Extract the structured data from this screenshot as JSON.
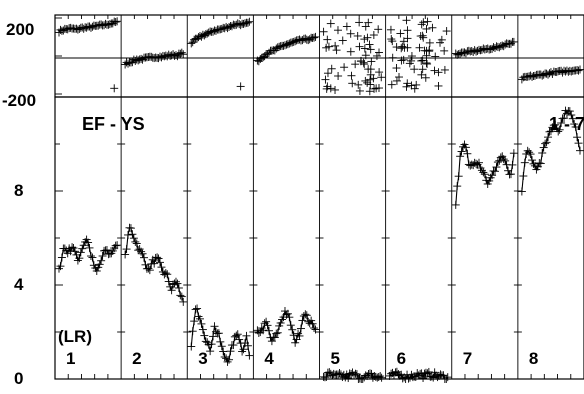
{
  "chart_data": {
    "type": "line",
    "title": "",
    "top_axis": {
      "ylim": [
        -200,
        200
      ],
      "ticks": [
        "200",
        "-200"
      ],
      "reference_line": 0
    },
    "bottom_axis": {
      "ylim": [
        0,
        12
      ],
      "ticks": [
        "0",
        "4",
        "8"
      ]
    },
    "label_left": "EF - YS",
    "label_right": "1 - 7",
    "label_units": "(LR)",
    "panel_labels": [
      "1",
      "2",
      "3",
      "4",
      "5",
      "6",
      "7",
      "8"
    ],
    "grid": false,
    "panels": [
      {
        "label": "1",
        "phase": [
          [
            0,
            130
          ],
          [
            0.1,
            140
          ],
          [
            0.2,
            145
          ],
          [
            0.3,
            140
          ],
          [
            0.4,
            148
          ],
          [
            0.5,
            150
          ],
          [
            0.6,
            155
          ],
          [
            0.7,
            160
          ],
          [
            0.8,
            165
          ],
          [
            0.9,
            172
          ],
          [
            1,
            180
          ]
        ],
        "phase_outlier": [
          [
            0.95,
            -170
          ]
        ],
        "amplitude": [
          [
            0,
            4.6
          ],
          [
            0.08,
            5.6
          ],
          [
            0.16,
            5.4
          ],
          [
            0.24,
            5.7
          ],
          [
            0.32,
            5.0
          ],
          [
            0.4,
            5.6
          ],
          [
            0.48,
            6.0
          ],
          [
            0.56,
            5.2
          ],
          [
            0.64,
            4.5
          ],
          [
            0.72,
            5.0
          ],
          [
            0.8,
            5.5
          ],
          [
            0.88,
            5.3
          ],
          [
            0.95,
            5.6
          ],
          [
            1,
            5.6
          ]
        ]
      },
      {
        "label": "2",
        "phase": [
          [
            0,
            -40
          ],
          [
            0.1,
            -30
          ],
          [
            0.2,
            -20
          ],
          [
            0.3,
            -15
          ],
          [
            0.4,
            -10
          ],
          [
            0.5,
            -5
          ],
          [
            0.6,
            -5
          ],
          [
            0.7,
            0
          ],
          [
            0.8,
            5
          ],
          [
            0.9,
            5
          ],
          [
            1,
            15
          ]
        ],
        "amplitude": [
          [
            0,
            5.2
          ],
          [
            0.08,
            6.5
          ],
          [
            0.16,
            6.0
          ],
          [
            0.24,
            5.5
          ],
          [
            0.32,
            5.2
          ],
          [
            0.4,
            4.6
          ],
          [
            0.48,
            5.0
          ],
          [
            0.56,
            5.1
          ],
          [
            0.64,
            4.6
          ],
          [
            0.72,
            4.4
          ],
          [
            0.8,
            3.8
          ],
          [
            0.88,
            4.2
          ],
          [
            0.95,
            3.6
          ],
          [
            1,
            3.3
          ]
        ]
      },
      {
        "label": "3",
        "phase": [
          [
            0,
            70
          ],
          [
            0.1,
            90
          ],
          [
            0.2,
            110
          ],
          [
            0.3,
            120
          ],
          [
            0.4,
            135
          ],
          [
            0.5,
            140
          ],
          [
            0.6,
            150
          ],
          [
            0.7,
            160
          ],
          [
            0.8,
            170
          ],
          [
            0.9,
            165
          ],
          [
            1,
            175
          ]
        ],
        "phase_outlier": [
          [
            0.85,
            -160
          ]
        ],
        "amplitude": [
          [
            0,
            1.5
          ],
          [
            0.08,
            3.0
          ],
          [
            0.16,
            2.6
          ],
          [
            0.24,
            1.8
          ],
          [
            0.32,
            1.2
          ],
          [
            0.4,
            2.2
          ],
          [
            0.48,
            1.8
          ],
          [
            0.56,
            1.0
          ],
          [
            0.64,
            0.8
          ],
          [
            0.72,
            1.5
          ],
          [
            0.8,
            2.0
          ],
          [
            0.88,
            1.2
          ],
          [
            0.95,
            1.8
          ],
          [
            1,
            1.0
          ]
        ]
      },
      {
        "label": "4",
        "phase": [
          [
            0,
            -30
          ],
          [
            0.1,
            0
          ],
          [
            0.2,
            20
          ],
          [
            0.3,
            30
          ],
          [
            0.4,
            50
          ],
          [
            0.5,
            60
          ],
          [
            0.6,
            70
          ],
          [
            0.7,
            80
          ],
          [
            0.8,
            85
          ],
          [
            0.9,
            90
          ],
          [
            1,
            95
          ]
        ],
        "amplitude": [
          [
            0,
            2.0
          ],
          [
            0.08,
            2.1
          ],
          [
            0.16,
            2.4
          ],
          [
            0.24,
            1.6
          ],
          [
            0.32,
            1.8
          ],
          [
            0.4,
            2.4
          ],
          [
            0.48,
            2.9
          ],
          [
            0.56,
            2.5
          ],
          [
            0.64,
            1.6
          ],
          [
            0.72,
            1.9
          ],
          [
            0.8,
            2.8
          ],
          [
            0.88,
            2.5
          ],
          [
            0.95,
            2.3
          ],
          [
            1,
            2.2
          ]
        ]
      },
      {
        "label": "5",
        "phase_scattered": true,
        "amplitude": [
          [
            0,
            0.1
          ],
          [
            0.1,
            0.2
          ],
          [
            0.2,
            0.1
          ],
          [
            0.3,
            0.15
          ],
          [
            0.4,
            0.1
          ],
          [
            0.5,
            0.2
          ],
          [
            0.6,
            0.1
          ],
          [
            0.7,
            0.05
          ],
          [
            0.8,
            0.15
          ],
          [
            0.9,
            0.1
          ],
          [
            1,
            0.05
          ]
        ]
      },
      {
        "label": "6",
        "phase_scattered": true,
        "amplitude": [
          [
            0,
            0.1
          ],
          [
            0.1,
            0.2
          ],
          [
            0.2,
            0.15
          ],
          [
            0.3,
            0.1
          ],
          [
            0.4,
            0.15
          ],
          [
            0.5,
            0.2
          ],
          [
            0.6,
            0.15
          ],
          [
            0.7,
            0.2
          ],
          [
            0.8,
            0.15
          ],
          [
            0.9,
            0.1
          ],
          [
            1,
            0.05
          ]
        ]
      },
      {
        "label": "7",
        "phase": [
          [
            0,
            10
          ],
          [
            0.1,
            15
          ],
          [
            0.2,
            20
          ],
          [
            0.3,
            25
          ],
          [
            0.4,
            30
          ],
          [
            0.5,
            35
          ],
          [
            0.6,
            40
          ],
          [
            0.7,
            45
          ],
          [
            0.8,
            55
          ],
          [
            0.9,
            65
          ],
          [
            1,
            75
          ]
        ],
        "amplitude": [
          [
            0,
            7.5
          ],
          [
            0.08,
            9.5
          ],
          [
            0.16,
            10.0
          ],
          [
            0.24,
            9.0
          ],
          [
            0.32,
            9.3
          ],
          [
            0.4,
            9.2
          ],
          [
            0.48,
            8.8
          ],
          [
            0.56,
            8.3
          ],
          [
            0.64,
            8.7
          ],
          [
            0.72,
            9.2
          ],
          [
            0.8,
            9.5
          ],
          [
            0.88,
            9.0
          ],
          [
            0.95,
            8.6
          ],
          [
            1,
            9.5
          ]
        ]
      },
      {
        "label": "8",
        "phase": [
          [
            0,
            -120
          ],
          [
            0.1,
            -110
          ],
          [
            0.2,
            -105
          ],
          [
            0.3,
            -100
          ],
          [
            0.4,
            -95
          ],
          [
            0.5,
            -90
          ],
          [
            0.6,
            -85
          ],
          [
            0.7,
            -82
          ],
          [
            0.8,
            -78
          ],
          [
            0.9,
            -75
          ],
          [
            1,
            -70
          ]
        ],
        "amplitude": [
          [
            0,
            8.0
          ],
          [
            0.08,
            9.8
          ],
          [
            0.16,
            9.5
          ],
          [
            0.24,
            9.0
          ],
          [
            0.32,
            9.2
          ],
          [
            0.4,
            10.0
          ],
          [
            0.48,
            10.5
          ],
          [
            0.56,
            10.9
          ],
          [
            0.64,
            10.6
          ],
          [
            0.72,
            11.2
          ],
          [
            0.8,
            11.5
          ],
          [
            0.88,
            11.0
          ],
          [
            0.95,
            10.4
          ],
          [
            1,
            9.8
          ]
        ]
      }
    ]
  }
}
